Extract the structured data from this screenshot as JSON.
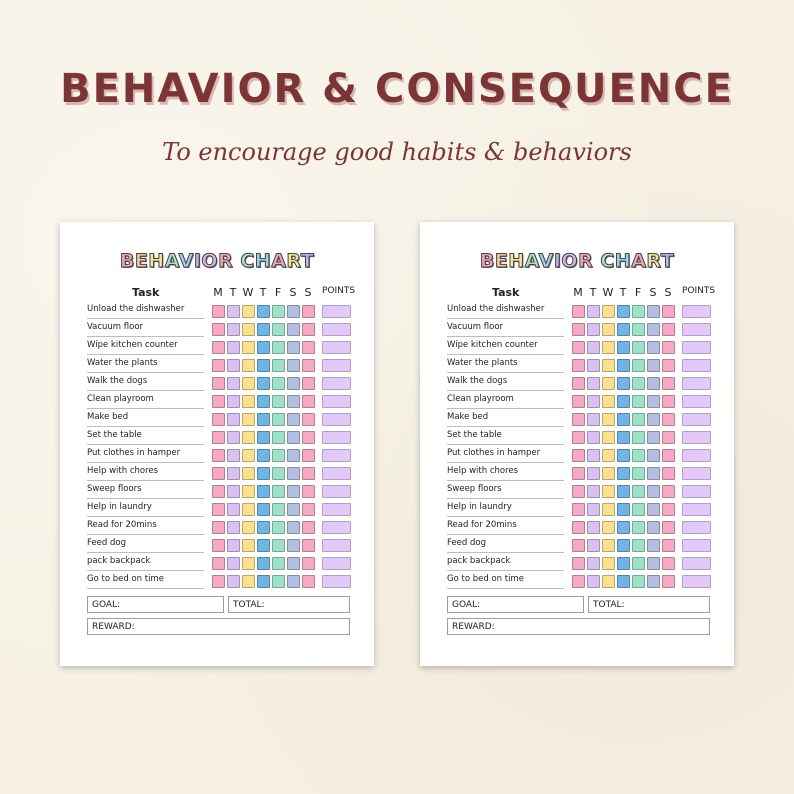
{
  "title": "BEHAVIOR & CONSEQUENCE",
  "subtitle": "To encourage good habits & behaviors",
  "chart": {
    "title_letters": [
      "B",
      "E",
      "H",
      "A",
      "V",
      "I",
      "O",
      "R",
      " ",
      "C",
      "H",
      "A",
      "R",
      "T"
    ],
    "title_colors": [
      "#f4a6bd",
      "#f7c9a0",
      "#f8e59a",
      "#a9e0c4",
      "#9fd1ee",
      "#b9b4ea",
      "#d6b3ee",
      "#f4a6bd",
      "#ffffff",
      "#a9e0c4",
      "#9fd1ee",
      "#f4a6bd",
      "#f8e59a",
      "#b9b4ea"
    ],
    "task_header": "Task",
    "days": [
      "M",
      "T",
      "W",
      "T",
      "F",
      "S",
      "S"
    ],
    "points_header": "POINTS",
    "tasks": [
      "Unload the dishwasher",
      "Vacuum floor",
      "Wipe kitchen counter",
      "Water the plants",
      "Walk the dogs",
      "Clean playroom",
      "Make bed",
      "Set the table",
      "Put clothes in hamper",
      "Help with chores",
      "Sweep floors",
      "Help in laundry",
      "Read for 20mins",
      "Feed dog",
      "pack backpack",
      "Go to bed on time"
    ],
    "goal_label": "GOAL:",
    "total_label": "TOTAL:",
    "reward_label": "REWARD:"
  },
  "colors": {
    "day_boxes": [
      "#f5a9c4",
      "#d8c1f0",
      "#f8e08e",
      "#6fb4e3",
      "#9fe0c8",
      "#b3bde0",
      "#f5a9c4"
    ],
    "points_box": "#e2c9f7",
    "title": "#7b3535"
  }
}
